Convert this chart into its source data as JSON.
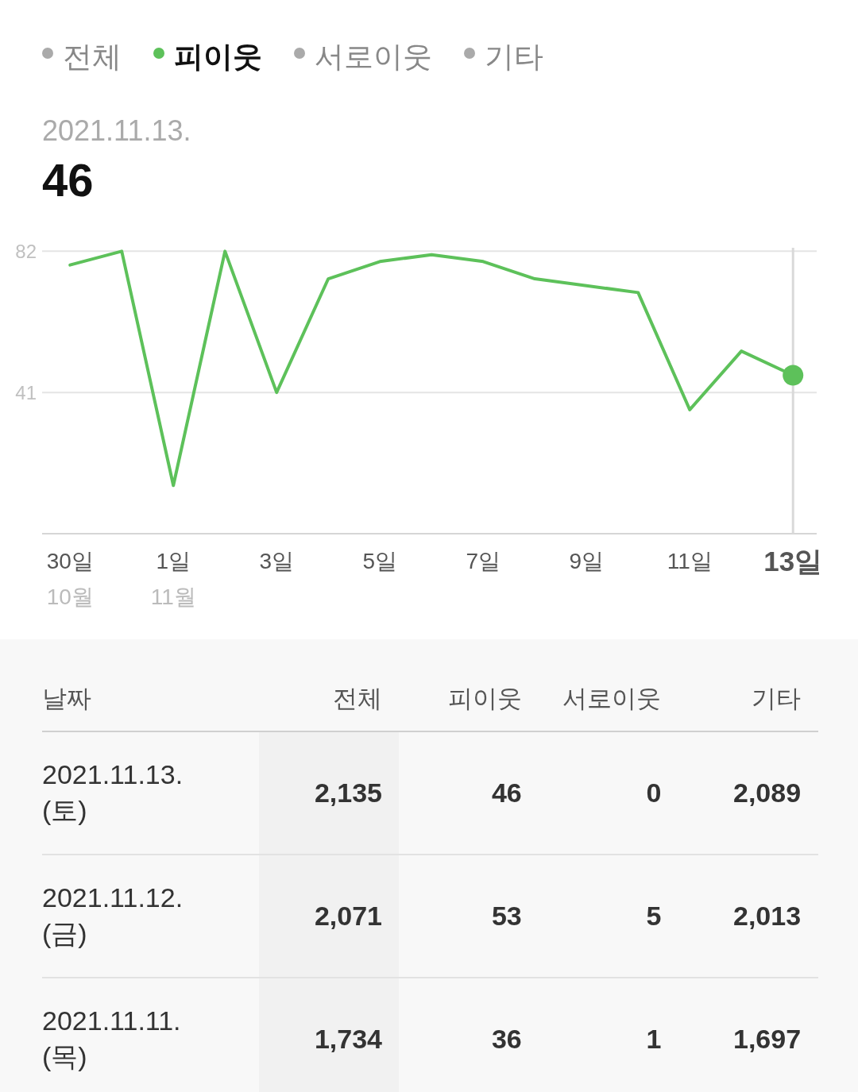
{
  "chart_data": [
    {
      "type": "line",
      "x": [
        "2021-10-30",
        "2021-10-31",
        "2021-11-01",
        "2021-11-02",
        "2021-11-03",
        "2021-11-04",
        "2021-11-05",
        "2021-11-06",
        "2021-11-07",
        "2021-11-08",
        "2021-11-09",
        "2021-11-10",
        "2021-11-11",
        "2021-11-12",
        "2021-11-13"
      ],
      "series": [
        {
          "name": "피이웃",
          "color": "#5dc15a",
          "values": [
            78,
            82,
            14,
            82,
            41,
            74,
            79,
            81,
            79,
            74,
            72,
            70,
            36,
            53,
            46
          ]
        },
        {
          "type": "scatter",
          "x": [
            "2021-11-13"
          ],
          "color": "#5dc15a",
          "values": [
            46
          ]
        }
      ],
      "xlim": [
        "2021-10-29T11:00",
        "2021-11-13T11:00"
      ],
      "xticks": [
        {
          "value": "2021-10-30",
          "label": "30일\n10월"
        },
        {
          "value": "2021-11-01",
          "label": "1일\n11월"
        },
        {
          "value": "2021-11-03",
          "label": "3일"
        },
        {
          "value": "2021-11-05",
          "label": "5일"
        },
        {
          "value": "2021-11-07",
          "label": "7일"
        },
        {
          "value": "2021-11-09",
          "label": "9일"
        },
        {
          "value": "2021-11-11",
          "label": "11일"
        },
        {
          "value": "2021-11-13",
          "label": "13일"
        }
      ],
      "ylim": [
        0,
        83
      ],
      "yticks": [
        41,
        82
      ],
      "grid": "y",
      "legend": "top left",
      "ref_lines": [
        {
          "axis": "x",
          "value": "2021-11-13",
          "color": "#d9d9d9"
        }
      ],
      "annotations": [
        "전체",
        "서로이웃",
        "기타",
        "2021.11.13.",
        "46"
      ]
    },
    {
      "type": "other",
      "ylabel": "날짜",
      "categories": [
        "2021.11.13. (토)",
        "2021.11.12. (금)",
        "2021.11.11. (목)"
      ],
      "series": [
        {
          "name": "전체",
          "color": "#333333",
          "values": [
            2135,
            2071,
            1734
          ],
          "value_labels": [
            "2,135",
            "2,071",
            "1,734"
          ]
        },
        {
          "name": "피이웃",
          "color": "#333333",
          "values": [
            46,
            53,
            36
          ],
          "value_labels": [
            "46",
            "53",
            "36"
          ]
        },
        {
          "name": "서로이웃",
          "color": "#333333",
          "values": [
            0,
            5,
            1
          ],
          "value_labels": [
            "0",
            "5",
            "1"
          ]
        },
        {
          "name": "기타",
          "color": "#333333",
          "values": [
            2089,
            2013,
            1697
          ],
          "value_labels": [
            "2,089",
            "2,013",
            "1,697"
          ]
        }
      ]
    }
  ]
}
